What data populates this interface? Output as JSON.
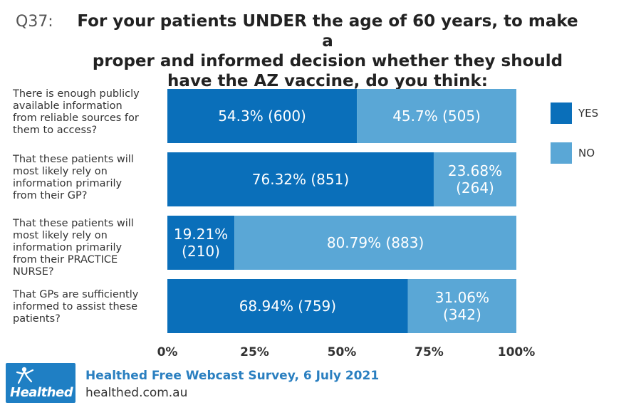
{
  "header": {
    "question_number": "Q37:",
    "title_lines": [
      "For your patients UNDER the age of 60 years, to make a",
      "proper and informed decision whether they should",
      "have the AZ vaccine, do you think:"
    ]
  },
  "chart_data": {
    "type": "bar",
    "orientation": "horizontal",
    "stacked": "100%",
    "categories": [
      [
        "There is enough publicly",
        "available information",
        "from reliable sources for",
        "them to access?"
      ],
      [
        "That these patients will",
        "most likely rely on",
        "information primarily",
        "from their GP?"
      ],
      [
        "That these patients will",
        "most likely rely on",
        "information primarily",
        "from their PRACTICE",
        "NURSE?"
      ],
      [
        "That GPs are sufficiently",
        "informed to assist these",
        "patients?"
      ]
    ],
    "series": [
      {
        "name": "YES",
        "color": "#0a6fba",
        "values": [
          54.3,
          76.32,
          19.21,
          68.94
        ],
        "labels": [
          [
            "54.3% (600)"
          ],
          [
            "76.32% (851)"
          ],
          [
            "19.21%",
            "(210)"
          ],
          [
            "68.94% (759)"
          ]
        ]
      },
      {
        "name": "NO",
        "color": "#5aa7d6",
        "values": [
          45.7,
          23.68,
          80.79,
          31.06
        ],
        "labels": [
          [
            "45.7% (505)"
          ],
          [
            "23.68%",
            "(264)"
          ],
          [
            "80.79% (883)"
          ],
          [
            "31.06%",
            "(342)"
          ]
        ]
      }
    ],
    "xlim": [
      0,
      100
    ],
    "xticks": [
      "0%",
      "25%",
      "50%",
      "75%",
      "100%"
    ],
    "legend_position": "right",
    "grid": false
  },
  "footer": {
    "logo_text": "Healthed",
    "survey": "Healthed Free Webcast Survey, 6 July 2021",
    "website": "healthed.com.au"
  }
}
